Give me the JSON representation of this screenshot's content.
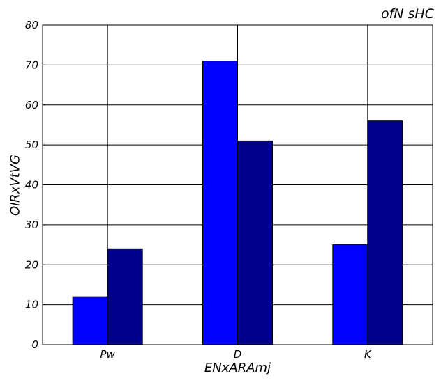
{
  "chart_data": {
    "type": "bar",
    "title": "ofN sHC",
    "xlabel": "ENxARAmj",
    "ylabel": "OlRxVtVG",
    "categories": [
      "Pw",
      "D",
      "K"
    ],
    "series": [
      {
        "color": "#0000ff",
        "values": [
          12,
          71,
          25
        ]
      },
      {
        "color": "#00008b",
        "values": [
          24,
          51,
          56
        ]
      }
    ],
    "ylim": [
      0,
      80
    ],
    "yticks": [
      0,
      10,
      20,
      30,
      40,
      50,
      60,
      70,
      80
    ],
    "grid": true
  }
}
